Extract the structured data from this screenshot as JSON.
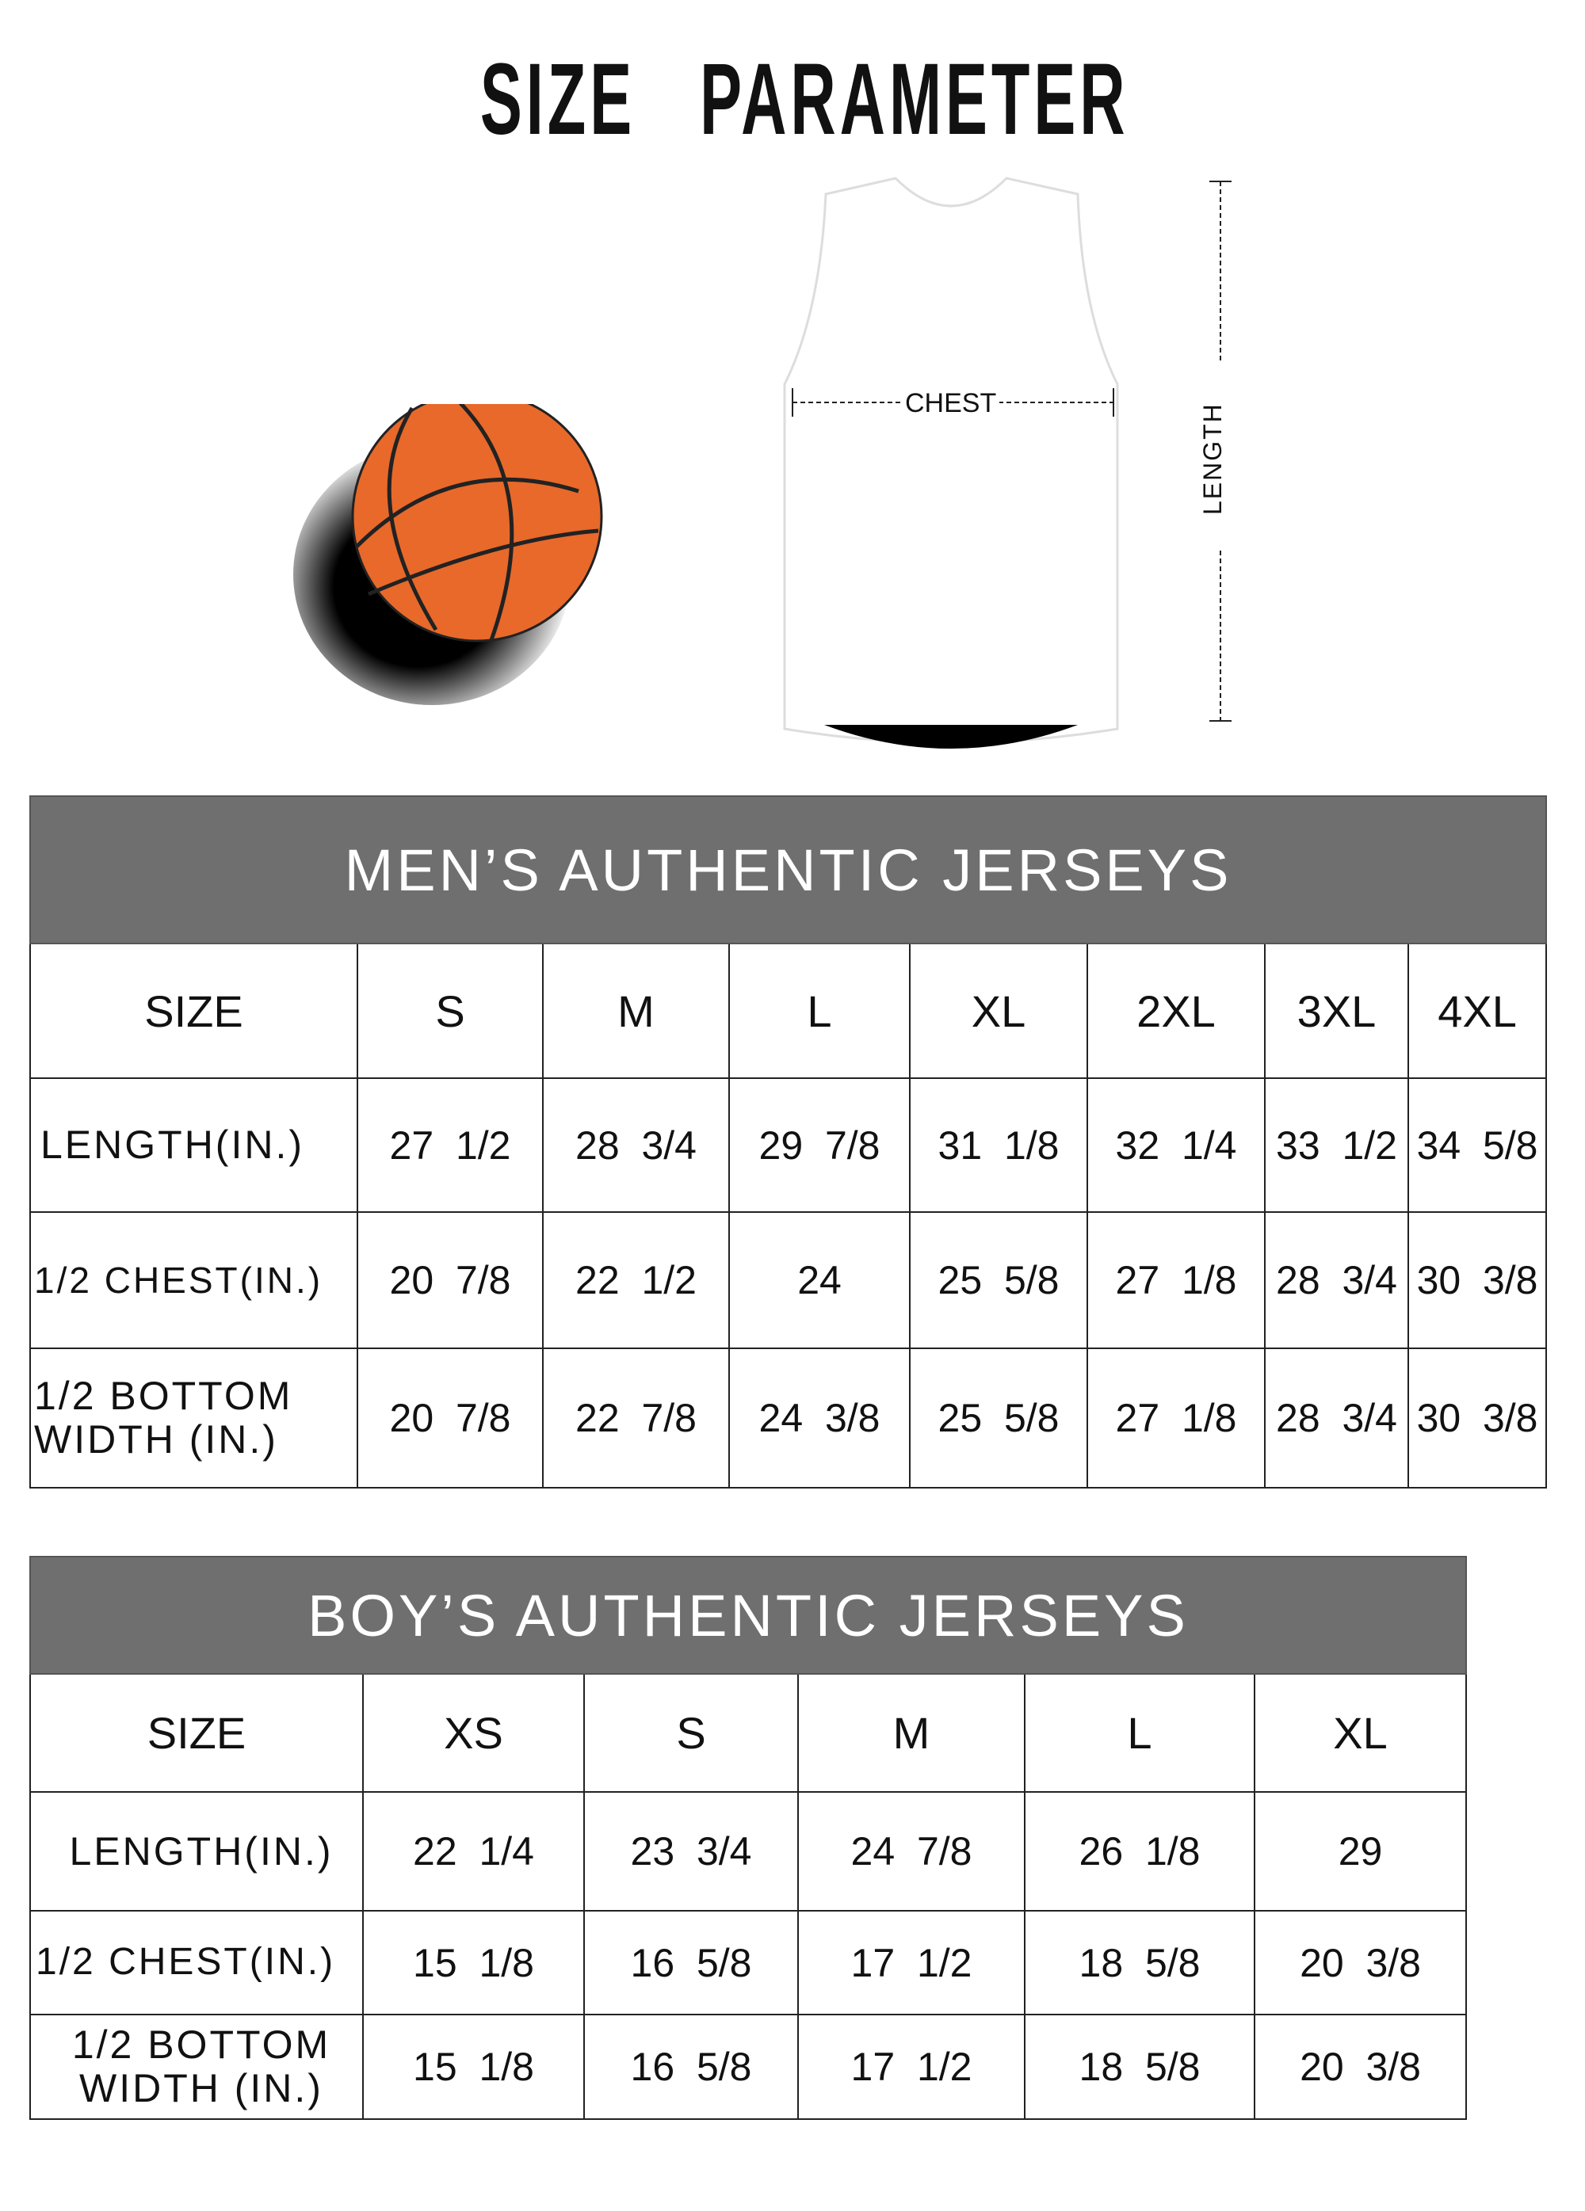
{
  "title": "SIZE   PARAMETER",
  "diagram": {
    "chest_label": "CHEST",
    "length_label": "LENGTH",
    "ball_color": "#e8692a"
  },
  "men": {
    "heading": "MEN’S AUTHENTIC JERSEYS",
    "columns": [
      "SIZE",
      "S",
      "M",
      "L",
      "XL",
      "2XL",
      "3XL",
      "4XL"
    ],
    "rows": [
      {
        "label": "LENGTH(IN.)",
        "values": [
          "27  1/2",
          "28  3/4",
          "29  7/8",
          "31  1/8",
          "32  1/4",
          "33  1/2",
          "34  5/8"
        ]
      },
      {
        "label": "1/2 CHEST(IN.)",
        "values": [
          "20  7/8",
          "22  1/2",
          "24",
          "25  5/8",
          "27  1/8",
          "28  3/4",
          "30  3/8"
        ]
      },
      {
        "label": "1/2 BOTTOM WIDTH  (IN.)",
        "values": [
          "20  7/8",
          "22  7/8",
          "24  3/8",
          "25  5/8",
          "27  1/8",
          "28  3/4",
          "30  3/8"
        ]
      }
    ]
  },
  "boy": {
    "heading": "BOY’S AUTHENTIC JERSEYS",
    "columns": [
      "SIZE",
      "XS",
      "S",
      "M",
      "L",
      "XL"
    ],
    "rows": [
      {
        "label": "LENGTH(IN.)",
        "values": [
          "22  1/4",
          "23  3/4",
          "24  7/8",
          "26  1/8",
          "29"
        ]
      },
      {
        "label": "1/2 CHEST(IN.)",
        "values": [
          "15  1/8",
          "16  5/8",
          "17  1/2",
          "18  5/8",
          "20  3/8"
        ]
      },
      {
        "label": "1/2 BOTTOM WIDTH  (IN.)",
        "values": [
          "15  1/8",
          "16  5/8",
          "17  1/2",
          "18  5/8",
          "20  3/8"
        ]
      }
    ]
  },
  "colors": {
    "header_bg": "#6f6f6f",
    "header_text": "#ffffff"
  }
}
